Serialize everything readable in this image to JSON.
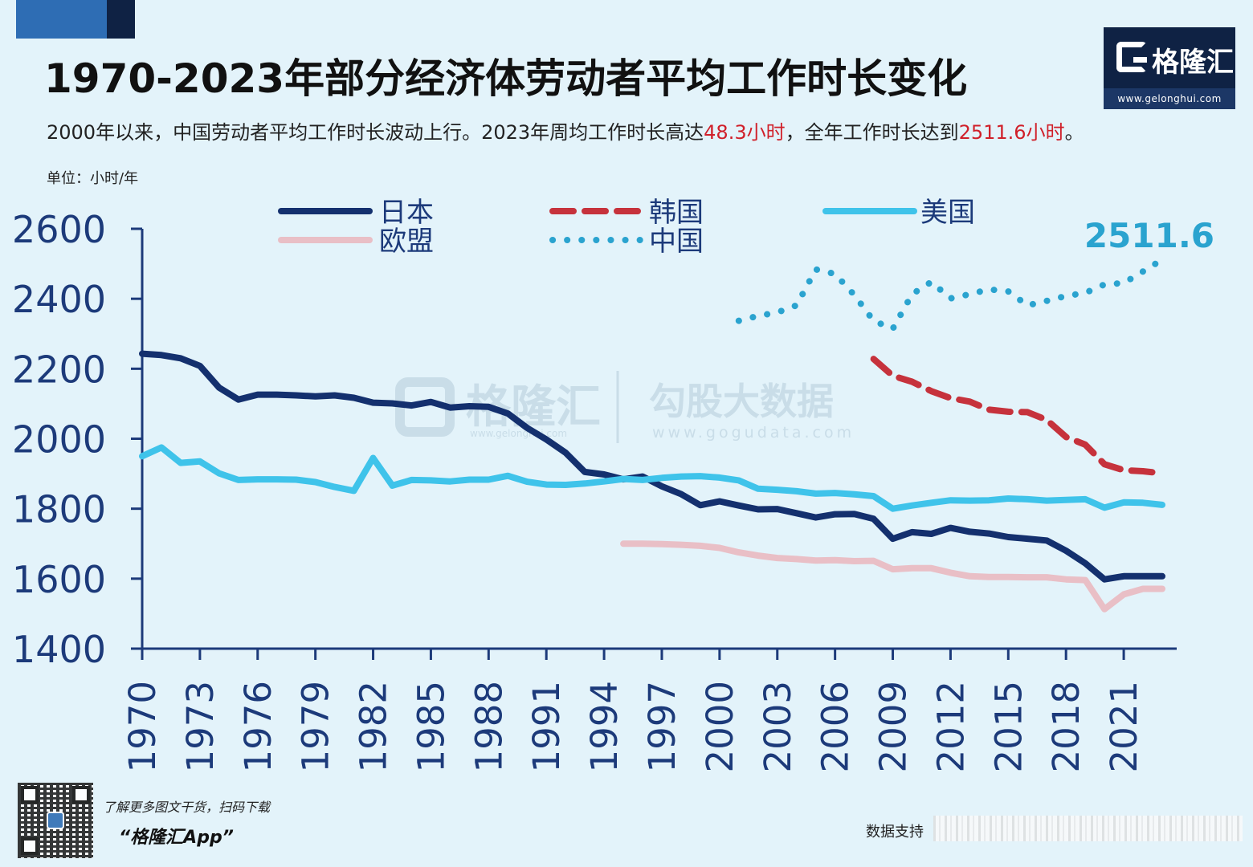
{
  "header": {
    "title": "1970-2023年部分经济体劳动者平均工作时长变化",
    "subtitle_parts": [
      "2000年以来，中国劳动者平均工作时长波动上行。2023年周均工作时长高达",
      "48.3小时",
      "，全年工作时长达到",
      "2511.6小时",
      "。"
    ],
    "unit": "单位：小时/年"
  },
  "logo": {
    "text": "格隆汇",
    "url": "www.gelonghui.com"
  },
  "watermark": {
    "brand": "格隆汇",
    "brand_url": "www.gelonghui.com",
    "name": "勾股大数据",
    "url": "www.gogudata.com"
  },
  "footer": {
    "qr_tagline": "了解更多图文干货，扫码下载",
    "app_name": "“格隆汇App”",
    "data_support": "数据支持"
  },
  "colors": {
    "japan": "#14306e",
    "korea": "#c6323c",
    "usa": "#3fc3ea",
    "eu": "#e9bfc6",
    "china": "#2aa3cf",
    "axis": "#1c3a7a"
  },
  "chart_data": {
    "type": "line",
    "ylim": [
      1400,
      2600
    ],
    "yticks": [
      1400,
      1600,
      1800,
      2000,
      2200,
      2400,
      2600
    ],
    "xlim": [
      1970,
      2023
    ],
    "xticks": [
      1970,
      1973,
      1976,
      1979,
      1982,
      1985,
      1988,
      1991,
      1994,
      1997,
      2000,
      2003,
      2006,
      2009,
      2012,
      2015,
      2018,
      2021
    ],
    "xlabel": "",
    "ylabel": "",
    "annotation": "2511.6",
    "series": [
      {
        "name": "日本",
        "style": "solid",
        "color_key": "japan",
        "x": [
          1970,
          1971,
          1972,
          1973,
          1974,
          1975,
          1976,
          1977,
          1978,
          1979,
          1980,
          1981,
          1982,
          1983,
          1984,
          1985,
          1986,
          1987,
          1988,
          1989,
          1990,
          1991,
          1992,
          1993,
          1994,
          1995,
          1996,
          1997,
          1998,
          1999,
          2000,
          2001,
          2002,
          2003,
          2004,
          2005,
          2006,
          2007,
          2008,
          2009,
          2010,
          2011,
          2012,
          2013,
          2014,
          2015,
          2016,
          2017,
          2018,
          2019,
          2020,
          2021,
          2022,
          2023
        ],
        "y": [
          2243,
          2239,
          2230,
          2208,
          2146,
          2112,
          2126,
          2126,
          2124,
          2121,
          2124,
          2117,
          2103,
          2101,
          2095,
          2105,
          2089,
          2093,
          2091,
          2072,
          2031,
          1998,
          1960,
          1905,
          1898,
          1884,
          1892,
          1864,
          1842,
          1810,
          1821,
          1809,
          1798,
          1799,
          1787,
          1775,
          1784,
          1785,
          1771,
          1714,
          1733,
          1728,
          1745,
          1734,
          1729,
          1719,
          1714,
          1709,
          1680,
          1644,
          1598,
          1607,
          1607,
          1607
        ]
      },
      {
        "name": "韩国",
        "style": "dashed",
        "color_key": "korea",
        "x": [
          2008,
          2009,
          2010,
          2011,
          2012,
          2013,
          2014,
          2015,
          2016,
          2017,
          2018,
          2019,
          2020,
          2021,
          2022,
          2023
        ],
        "y": [
          2228,
          2180,
          2163,
          2136,
          2116,
          2106,
          2083,
          2077,
          2076,
          2054,
          2005,
          1983,
          1927,
          1910,
          1907,
          1901
        ]
      },
      {
        "name": "美国",
        "style": "solid",
        "color_key": "usa",
        "x": [
          1970,
          1971,
          1972,
          1973,
          1974,
          1975,
          1976,
          1977,
          1978,
          1979,
          1980,
          1981,
          1982,
          1983,
          1984,
          1985,
          1986,
          1987,
          1988,
          1989,
          1990,
          1991,
          1992,
          1993,
          1994,
          1995,
          1996,
          1997,
          1998,
          1999,
          2000,
          2001,
          2002,
          2003,
          2004,
          2005,
          2006,
          2007,
          2008,
          2009,
          2010,
          2011,
          2012,
          2013,
          2014,
          2015,
          2016,
          2017,
          2018,
          2019,
          2020,
          2021,
          2022,
          2023
        ],
        "y": [
          1950,
          1975,
          1931,
          1935,
          1901,
          1882,
          1884,
          1884,
          1883,
          1876,
          1862,
          1851,
          1945,
          1866,
          1882,
          1881,
          1878,
          1883,
          1883,
          1894,
          1877,
          1869,
          1868,
          1872,
          1878,
          1885,
          1882,
          1888,
          1892,
          1893,
          1889,
          1881,
          1857,
          1854,
          1850,
          1843,
          1845,
          1841,
          1836,
          1800,
          1809,
          1817,
          1824,
          1823,
          1824,
          1829,
          1827,
          1823,
          1825,
          1827,
          1803,
          1818,
          1817,
          1811
        ]
      },
      {
        "name": "欧盟",
        "style": "solid",
        "color_key": "eu",
        "x": [
          1995,
          1996,
          1997,
          1998,
          1999,
          2000,
          2001,
          2002,
          2003,
          2004,
          2005,
          2006,
          2007,
          2008,
          2009,
          2010,
          2011,
          2012,
          2013,
          2014,
          2015,
          2016,
          2017,
          2018,
          2019,
          2020,
          2021,
          2022,
          2023
        ],
        "y": [
          1700,
          1700,
          1699,
          1697,
          1694,
          1688,
          1675,
          1666,
          1659,
          1656,
          1652,
          1653,
          1650,
          1651,
          1627,
          1630,
          1630,
          1617,
          1607,
          1605,
          1605,
          1604,
          1604,
          1598,
          1596,
          1513,
          1555,
          1571,
          1571
        ]
      },
      {
        "name": "中国",
        "style": "dotted",
        "color_key": "china",
        "x": [
          2001,
          2002,
          2003,
          2004,
          2005,
          2006,
          2007,
          2008,
          2009,
          2010,
          2011,
          2012,
          2013,
          2014,
          2015,
          2016,
          2017,
          2018,
          2019,
          2020,
          2021,
          2022,
          2023
        ],
        "y": [
          2337,
          2351,
          2361,
          2381,
          2484,
          2471,
          2411,
          2337,
          2314,
          2413,
          2448,
          2401,
          2413,
          2427,
          2421,
          2381,
          2394,
          2408,
          2417,
          2441,
          2445,
          2478,
          2512
        ]
      }
    ]
  }
}
